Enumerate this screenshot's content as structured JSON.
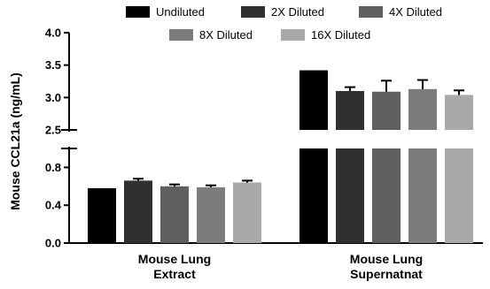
{
  "chart_data": {
    "type": "bar",
    "ylabel": "Mouse CCL21a (ng/mL)",
    "categories": [
      [
        "Mouse Lung",
        "Extract"
      ],
      [
        "Mouse Lung",
        "Supernatnat"
      ]
    ],
    "series": [
      {
        "name": "Undiluted",
        "color": "#000000",
        "values": [
          0.58,
          3.42
        ],
        "errors": [
          0.0,
          0.0
        ]
      },
      {
        "name": "2X Diluted",
        "color": "#303030",
        "values": [
          0.66,
          3.1
        ],
        "errors": [
          0.02,
          0.06
        ]
      },
      {
        "name": "4X Diluted",
        "color": "#5f5f5f",
        "values": [
          0.6,
          3.09
        ],
        "errors": [
          0.02,
          0.17
        ]
      },
      {
        "name": "8X Diluted",
        "color": "#7c7c7c",
        "values": [
          0.59,
          3.13
        ],
        "errors": [
          0.02,
          0.14
        ]
      },
      {
        "name": "16X Diluted",
        "color": "#a9a9a9",
        "values": [
          0.64,
          3.04
        ],
        "errors": [
          0.02,
          0.07
        ]
      }
    ],
    "axis_break": {
      "lower_range": [
        0,
        1.0
      ],
      "upper_range": [
        2.5,
        4.0
      ],
      "lower_ticks": [
        "0.0",
        "0.4",
        "0.8"
      ],
      "upper_ticks": [
        "2.5",
        "3.0",
        "3.5",
        "4.0"
      ]
    },
    "legend_position": "top",
    "grid": false
  }
}
